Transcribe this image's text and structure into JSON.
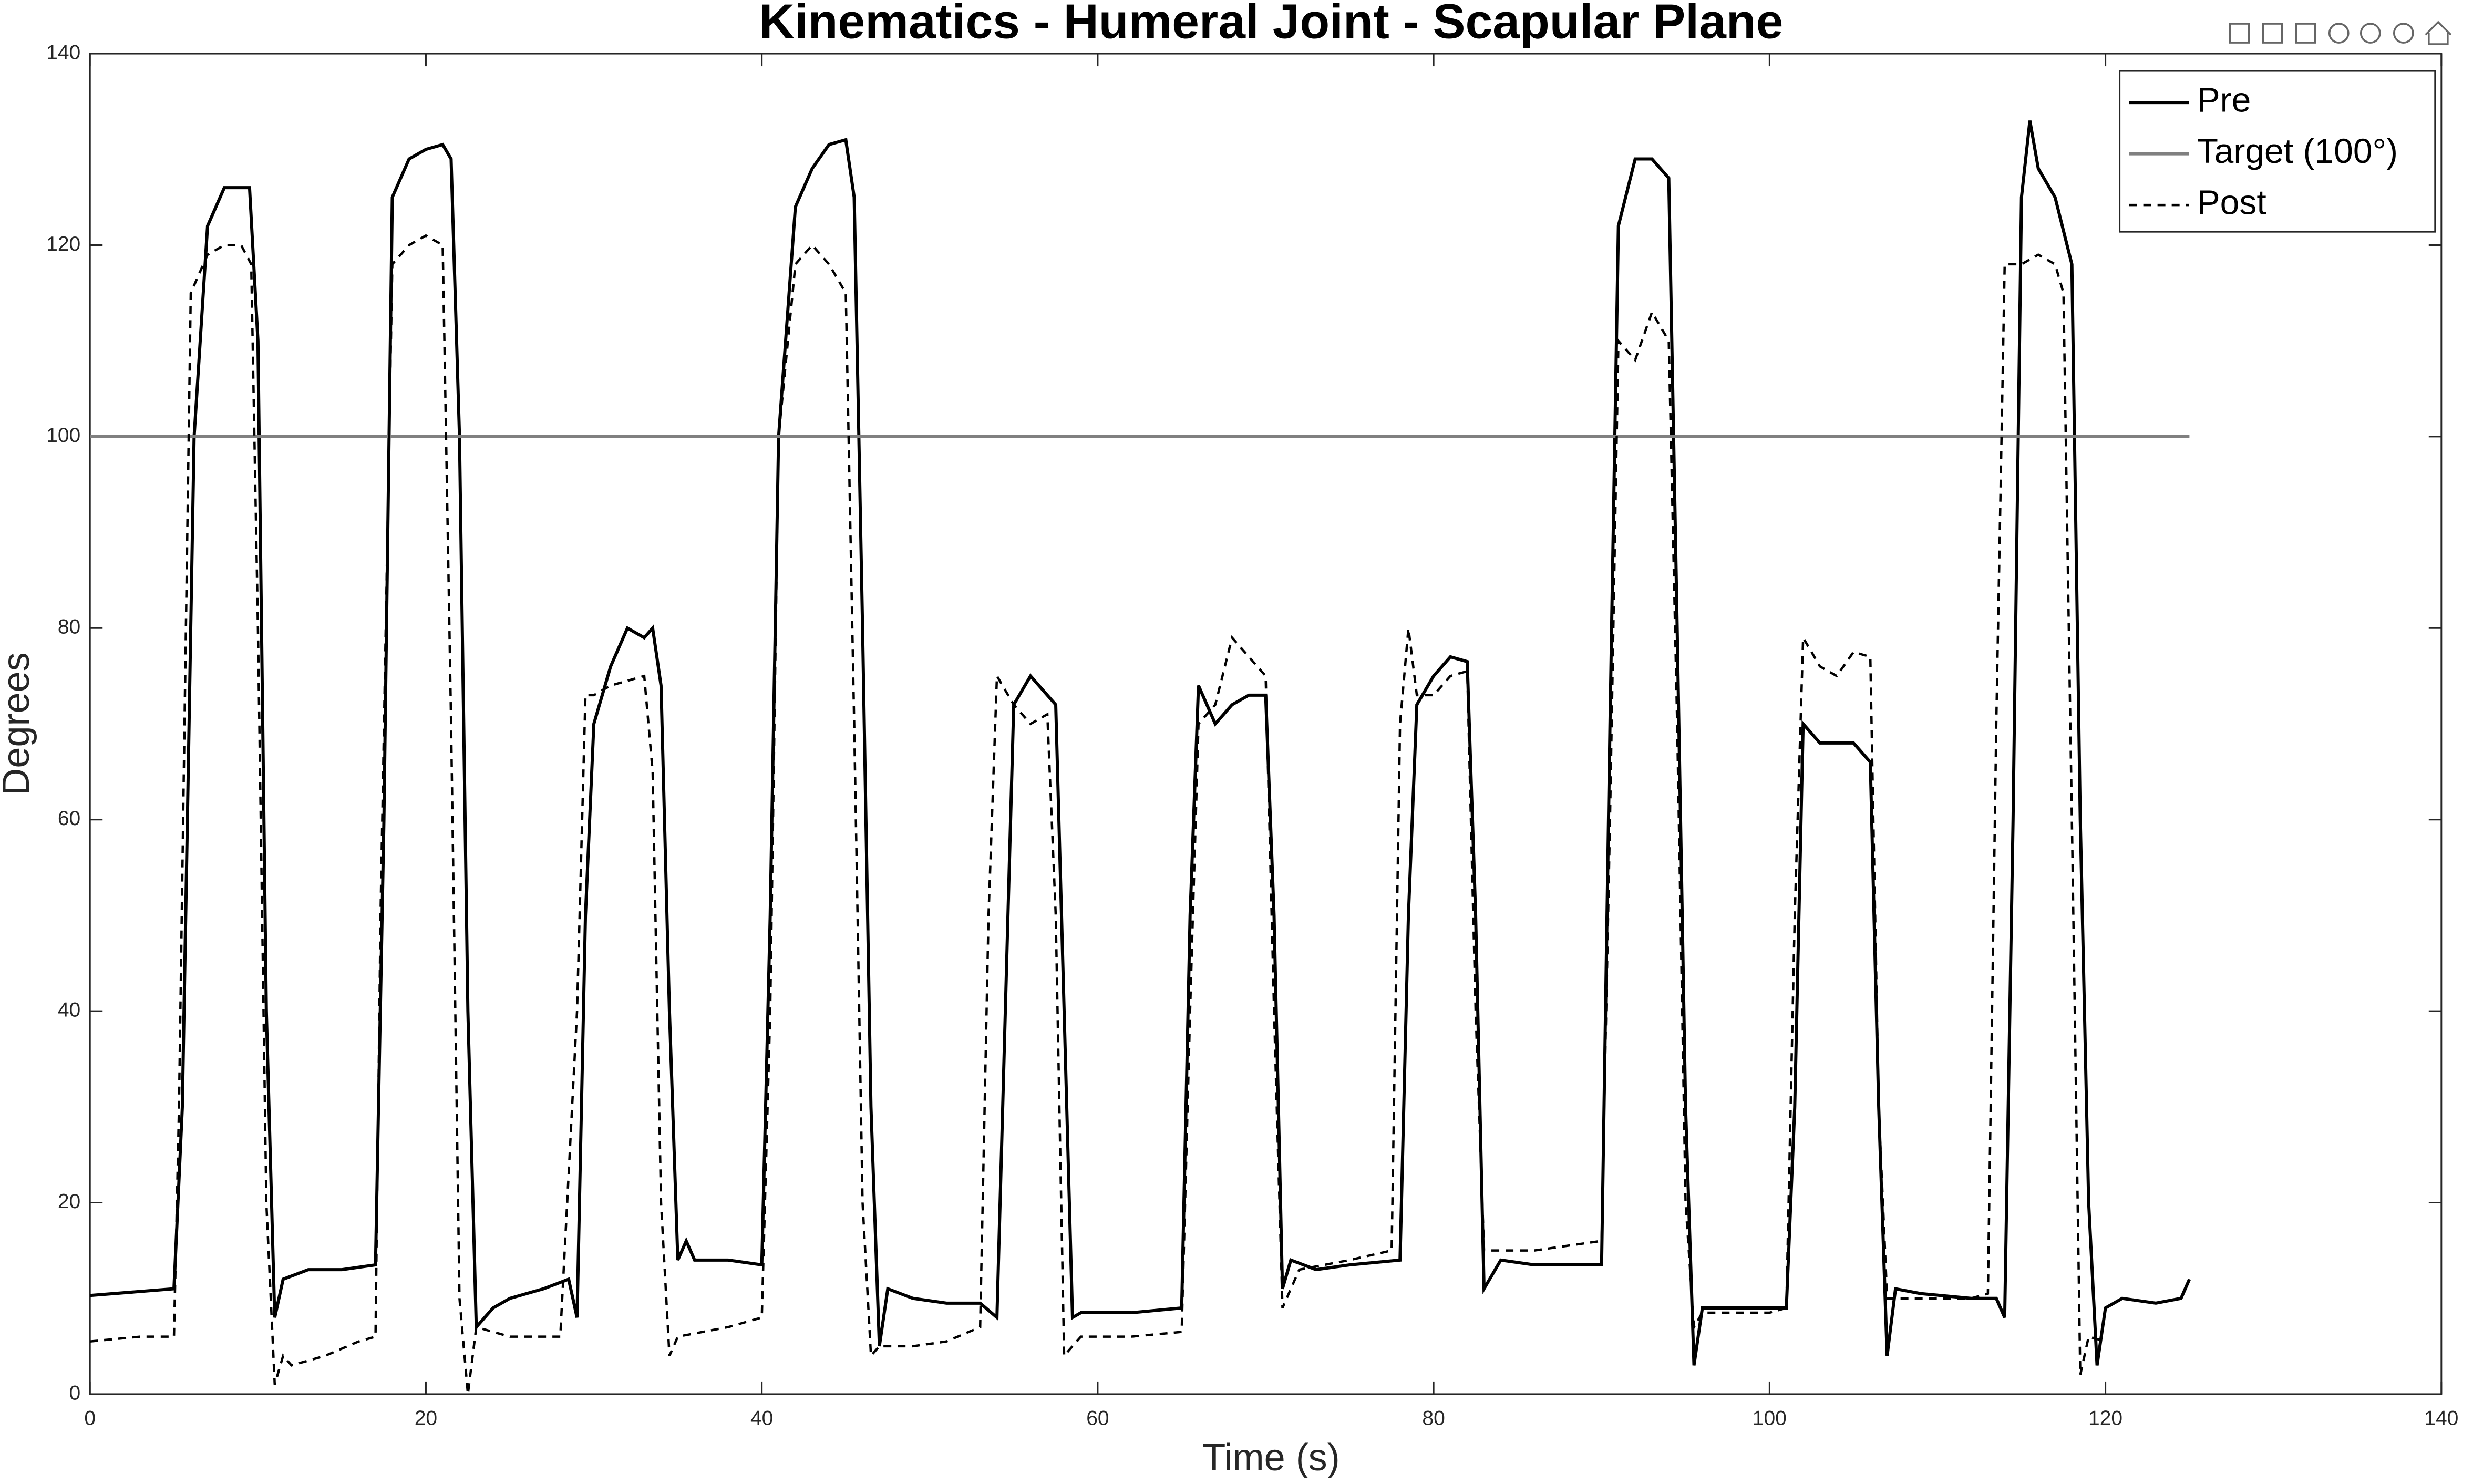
{
  "chart_data": {
    "type": "line",
    "title": "Kinematics - Humeral Joint - Scapular Plane",
    "x_label": "Time (s)",
    "y_label": "Degrees",
    "xlim": [
      0,
      140
    ],
    "xticks": [
      0,
      20,
      40,
      60,
      80,
      100,
      120,
      140
    ],
    "ylim": [
      0,
      140
    ],
    "yticks": [
      0,
      20,
      40,
      60,
      80,
      100,
      120,
      140
    ],
    "grid": false,
    "legend": "top-right",
    "series": [
      {
        "name": "Pre",
        "color": "#000000",
        "dashed": false,
        "x": [
          0,
          5,
          5.5,
          6.2,
          7,
          8,
          9,
          9.5,
          10,
          10.5,
          11,
          11.5,
          13,
          15,
          17,
          17.5,
          18,
          19,
          20,
          21,
          21.5,
          22,
          22.5,
          23,
          24,
          25,
          27,
          28.5,
          29,
          29.5,
          30,
          31,
          32,
          33,
          33.5,
          34,
          34.5,
          35,
          35.5,
          36,
          38,
          40,
          40.5,
          41,
          42,
          43,
          44,
          45,
          45.5,
          46,
          46.5,
          47,
          47.5,
          49,
          51,
          53,
          54,
          54.5,
          55,
          56,
          57,
          57.5,
          58,
          58.5,
          59,
          62,
          65,
          65.5,
          66,
          67,
          68,
          69,
          70,
          70.5,
          71,
          71.5,
          73,
          75,
          78,
          78.5,
          79,
          80,
          81,
          82,
          82.5,
          83,
          84,
          86,
          90,
          90.5,
          91,
          92,
          93,
          94,
          94.5,
          95,
          95.5,
          96,
          98,
          100,
          101,
          101.5,
          102,
          103,
          105,
          106,
          106.5,
          107,
          107.5,
          109,
          112,
          113.5,
          114,
          114.5,
          115,
          115.5,
          116,
          117,
          118,
          118.5,
          119,
          119.5,
          120,
          121,
          123,
          124.5,
          125
        ],
        "values": [
          10.3,
          11,
          30,
          100,
          122,
          126,
          126,
          126,
          110,
          40,
          8,
          12,
          13,
          13,
          13.5,
          60,
          125,
          129,
          130,
          130.5,
          129,
          100,
          40,
          7,
          9,
          10,
          11,
          12,
          8,
          50,
          70,
          76,
          80,
          79,
          80,
          74,
          40,
          14,
          16,
          14,
          14,
          13.5,
          50,
          100,
          124,
          128,
          130.5,
          131,
          125,
          80,
          30,
          5,
          11,
          10,
          9.5,
          9.5,
          8,
          40,
          72,
          75,
          73,
          72,
          40,
          8,
          8.5,
          8.5,
          9,
          50,
          74,
          70,
          72,
          73,
          73,
          50,
          11,
          14,
          13,
          13.5,
          14,
          50,
          72,
          75,
          77,
          76.5,
          50,
          11,
          14,
          13.5,
          13.5,
          70,
          122,
          129,
          129,
          127,
          80,
          30,
          3,
          9,
          9,
          9,
          9,
          30,
          70,
          68,
          68,
          66,
          30,
          4,
          11,
          10.5,
          10,
          10,
          8,
          60,
          125,
          133,
          128,
          125,
          118,
          60,
          20,
          3,
          9,
          10,
          9.5,
          10,
          12
        ]
      },
      {
        "name": "Target (100°)",
        "color": "#808080",
        "dashed": false,
        "x": [
          0,
          125
        ],
        "values": [
          100,
          100
        ]
      },
      {
        "name": "Post",
        "color": "#000000",
        "dashed": true,
        "x": [
          0,
          3,
          5,
          5.3,
          6,
          7,
          8,
          9,
          9.6,
          10,
          10.5,
          11,
          11.5,
          12,
          14,
          16,
          17,
          17.3,
          18,
          19,
          20,
          21,
          21.5,
          22,
          22.5,
          23,
          25,
          27,
          28,
          29,
          29.5,
          30,
          31,
          33,
          33.5,
          34,
          34.5,
          35,
          38,
          40,
          40.5,
          41,
          42,
          43,
          44,
          45,
          45.5,
          46,
          46.5,
          47,
          49,
          51,
          53,
          53.5,
          54,
          55,
          56,
          57,
          57.5,
          58,
          59,
          62,
          65,
          65.5,
          66,
          67,
          68,
          69,
          70,
          70.5,
          71,
          72,
          75,
          77.5,
          78,
          78.5,
          79,
          80,
          81,
          82,
          82.5,
          83,
          86,
          90,
          90.5,
          91,
          92,
          93,
          94,
          94.5,
          95,
          95.5,
          96,
          100,
          101,
          101.5,
          102,
          103,
          104,
          105,
          106,
          106.5,
          107,
          108,
          112,
          113,
          113.5,
          114,
          115,
          116,
          117,
          117.5,
          118,
          118.5,
          119,
          120
        ],
        "values": [
          5.5,
          6,
          6,
          30,
          115,
          119,
          120,
          120,
          118,
          80,
          20,
          1,
          4,
          3,
          4,
          5.5,
          6,
          50,
          118,
          120,
          121,
          120,
          70,
          10,
          0,
          7,
          6,
          6,
          6,
          40,
          73,
          73,
          74,
          75,
          65,
          20,
          4,
          6,
          7,
          8,
          40,
          100,
          118,
          120,
          118,
          115,
          70,
          20,
          4,
          5,
          5,
          5.5,
          7,
          50,
          75,
          72,
          70,
          71,
          50,
          4,
          6,
          6,
          6.5,
          40,
          70,
          72,
          79,
          77,
          75,
          40,
          9,
          13,
          14,
          15,
          70,
          80,
          73,
          73,
          75,
          75.5,
          40,
          15,
          15,
          16,
          60,
          110,
          108,
          113,
          110,
          70,
          20,
          7,
          8.5,
          8.5,
          9,
          50,
          79,
          76,
          75,
          77.5,
          77,
          30,
          10,
          10,
          10,
          10.5,
          70,
          118,
          118,
          119,
          118,
          115,
          60,
          2,
          6,
          5.5
        ]
      }
    ]
  }
}
